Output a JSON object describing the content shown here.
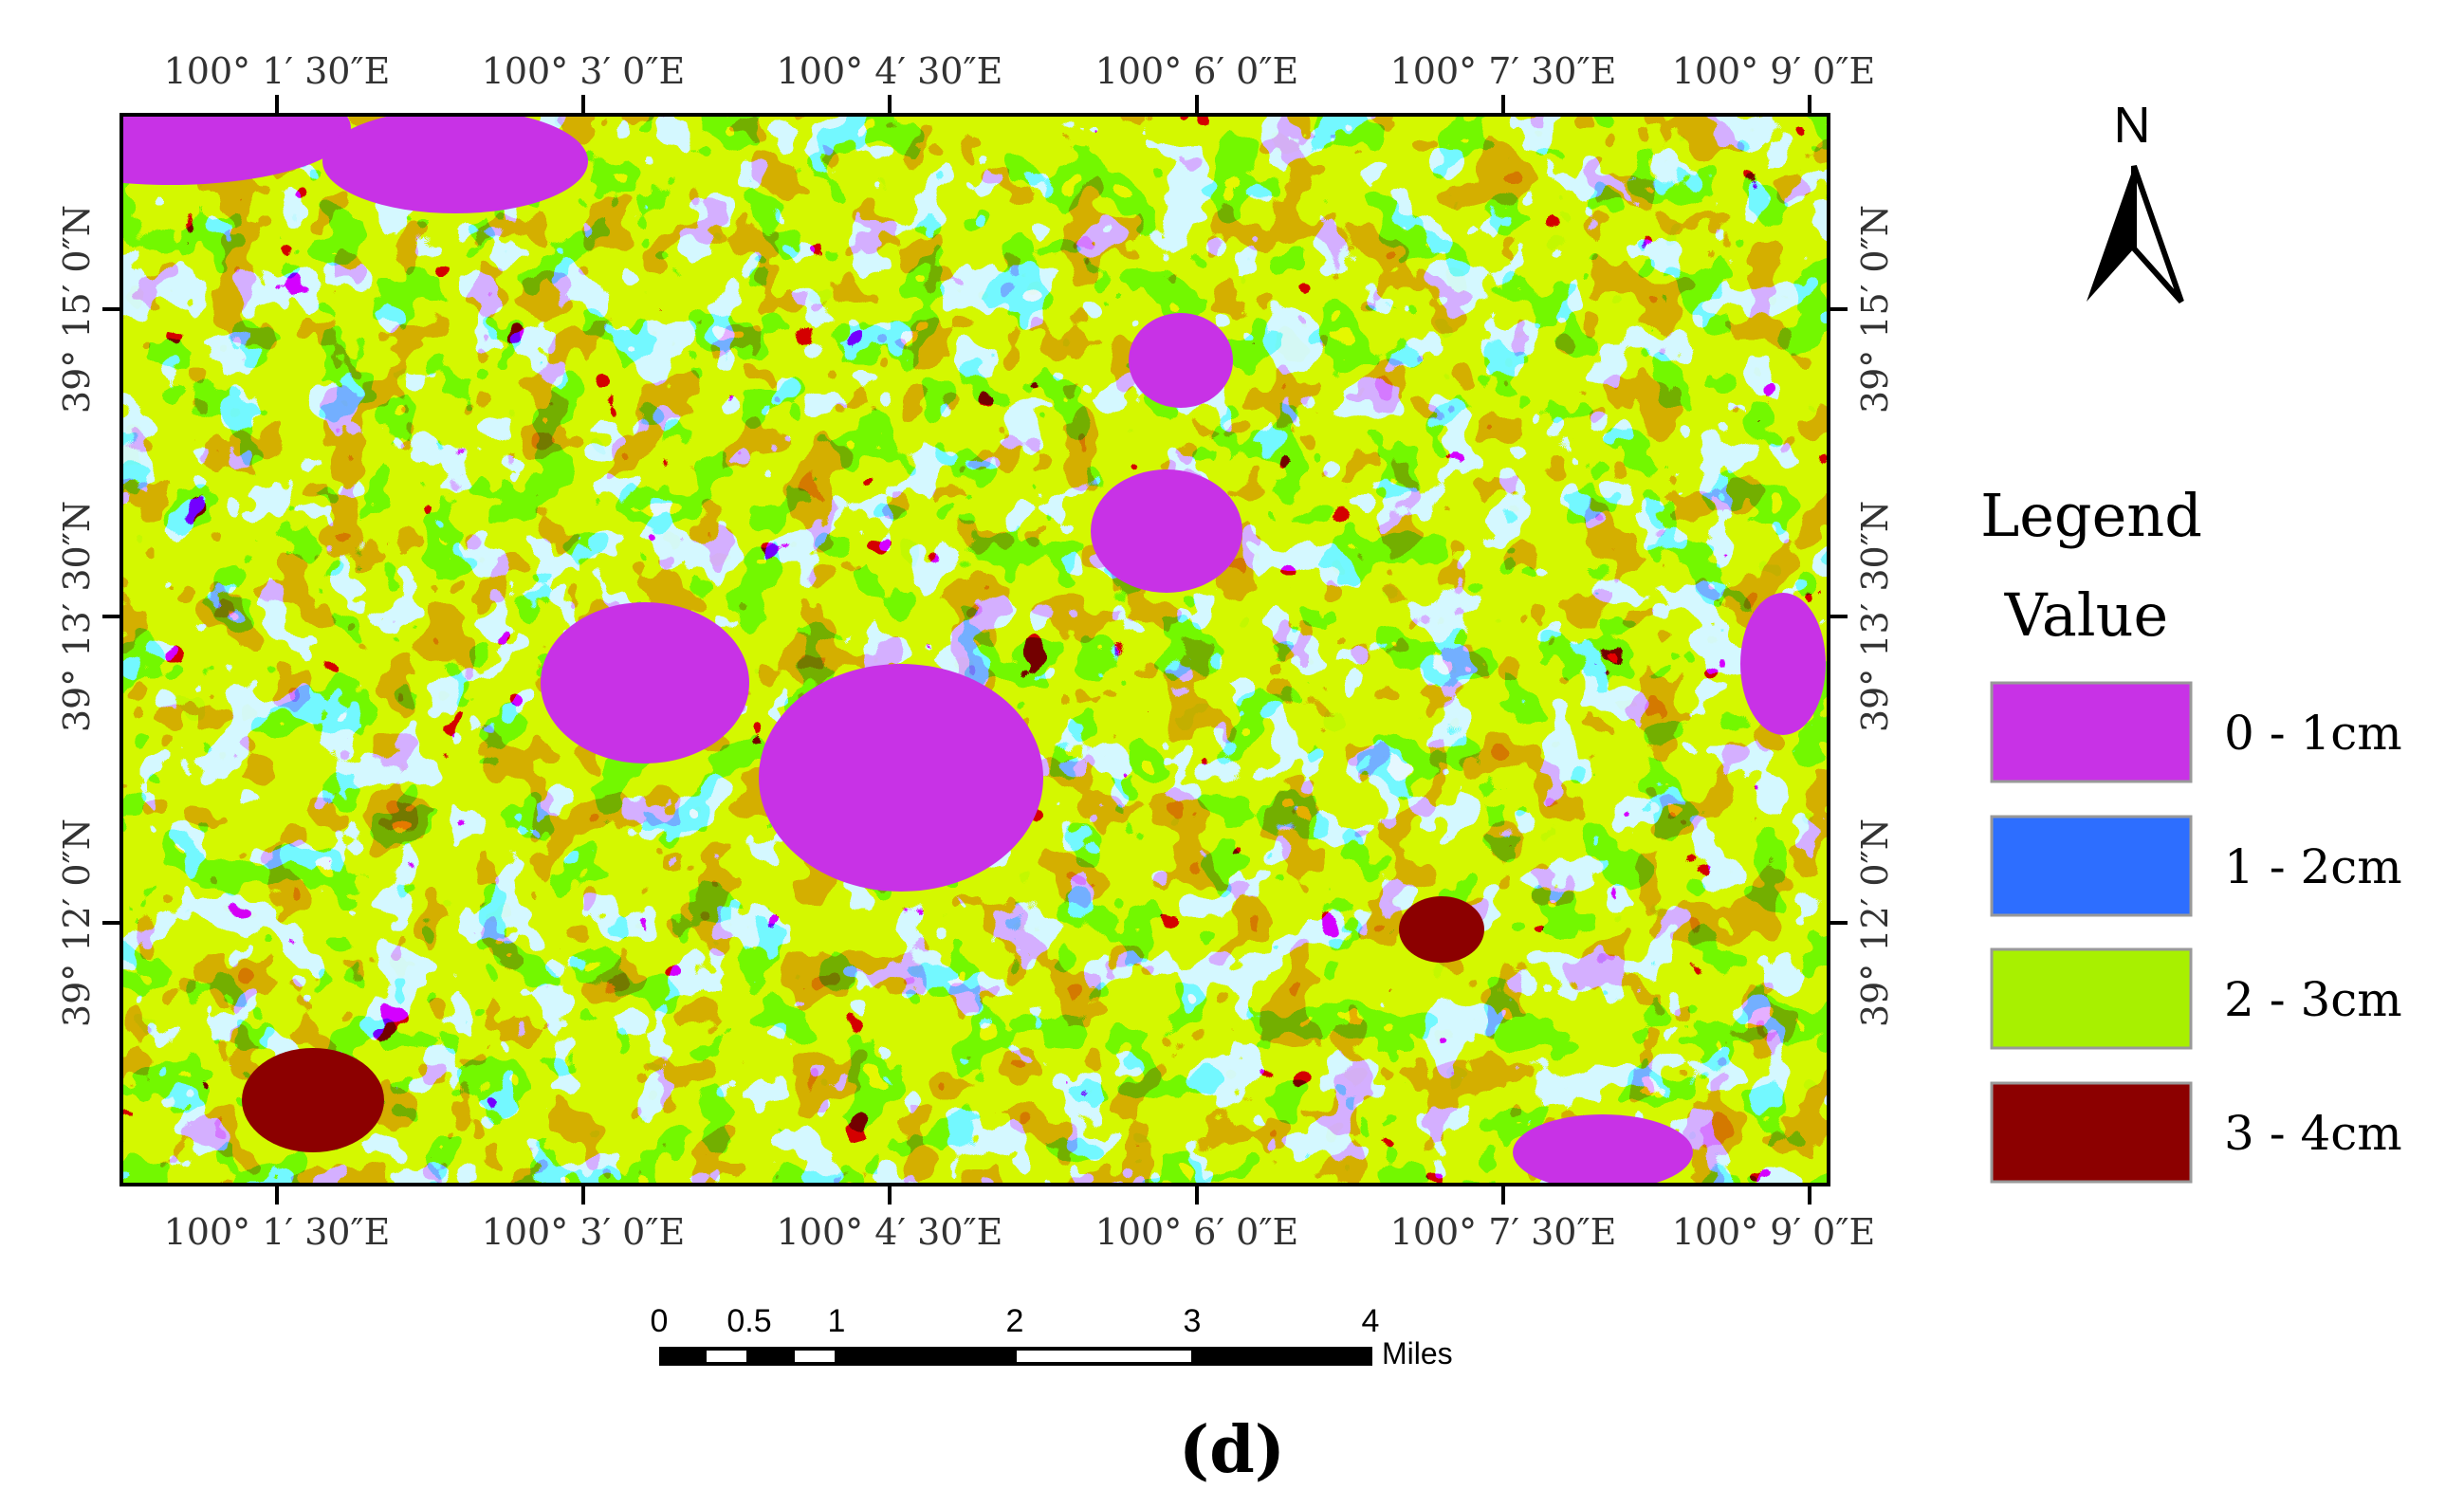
{
  "map": {
    "top_ticks": [
      "100° 1′ 30″E",
      "100° 3′ 0″E",
      "100° 4′ 30″E",
      "100° 6′ 0″E",
      "100° 7′ 30″E",
      "100° 9′ 0″E"
    ],
    "bottom_ticks": [
      "100° 1′ 30″E",
      "100° 3′ 0″E",
      "100° 4′ 30″E",
      "100° 6′ 0″E",
      "100° 7′ 30″E",
      "100° 9′ 0″E"
    ],
    "left_ticks": [
      "39° 15′ 0″N",
      "39° 13′ 30″N",
      "39° 12′ 0″N"
    ],
    "right_ticks": [
      "39° 15′ 0″N",
      "39° 13′ 30″N",
      "39° 12′ 0″N"
    ],
    "classes": [
      {
        "label": "0 - 1cm",
        "color": "#c832e6"
      },
      {
        "label": "1 - 2cm",
        "color": "#2d6eff"
      },
      {
        "label": "2 - 3cm",
        "color": "#a8f000"
      },
      {
        "label": "3 - 4cm",
        "color": "#8c0000"
      }
    ]
  },
  "north_arrow": {
    "label": "N"
  },
  "legend": {
    "title": "Legend",
    "subtitle": "Value"
  },
  "scale_bar": {
    "ticks": [
      "0",
      "0.5",
      "1",
      "2",
      "3",
      "4"
    ],
    "unit": "Miles"
  },
  "caption": {
    "text": "(d)"
  }
}
